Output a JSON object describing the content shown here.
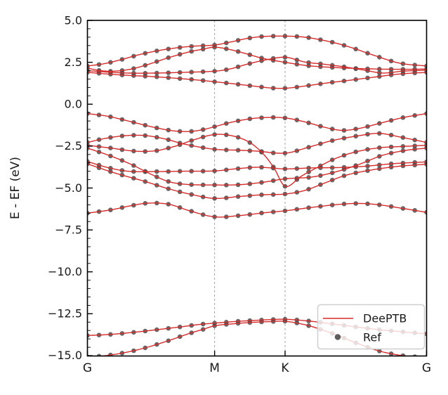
{
  "figure": {
    "background": "#ffffff"
  },
  "chart_data": {
    "type": "line",
    "title": "",
    "ylabel": "E - EF (eV)",
    "ylim": [
      -15,
      5
    ],
    "x_tick_labels": [
      "G",
      "M",
      "K",
      "G"
    ],
    "x_tick_positions": [
      0,
      0.375,
      0.5828,
      1
    ],
    "y_tick_values": [
      5.0,
      2.5,
      0.0,
      -2.5,
      -5.0,
      -7.5,
      -10.0,
      -12.5,
      -15.0
    ],
    "y_tick_labels": [
      "5.0",
      "2.5",
      "0.0",
      "−2.5",
      "−5.0",
      "−7.5",
      "−10.0",
      "−12.5",
      "−15.0"
    ],
    "y_minor_step": 0.5,
    "vlines_x": [
      0.375,
      0.5828
    ],
    "grid": "vertical-dashed-at-high-symmetry-points",
    "legend": {
      "position": "lower-right",
      "entries": [
        {
          "label": "DeePTB",
          "style": "line",
          "color": "#d62b2b"
        },
        {
          "label": "Ref",
          "style": "marker",
          "color": "#4d4d4d"
        }
      ]
    },
    "colors": {
      "line": "#d62b2b",
      "marker": "#4d4d4d",
      "vline": "#999999",
      "axis": "#000000"
    },
    "markers_per_band": 30,
    "bands": [
      {
        "name": "conduction-1",
        "points": [
          [
            0,
            2.28
          ],
          [
            0.05,
            2.42
          ],
          [
            0.1,
            2.66
          ],
          [
            0.15,
            2.94
          ],
          [
            0.21,
            3.2
          ],
          [
            0.27,
            3.38
          ],
          [
            0.32,
            3.47
          ],
          [
            0.375,
            3.53
          ],
          [
            0.42,
            3.7
          ],
          [
            0.47,
            3.92
          ],
          [
            0.52,
            4.04
          ],
          [
            0.583,
            4.06
          ],
          [
            0.64,
            4.0
          ],
          [
            0.71,
            3.75
          ],
          [
            0.77,
            3.43
          ],
          [
            0.84,
            2.95
          ],
          [
            0.92,
            2.45
          ],
          [
            1,
            2.28
          ]
        ]
      },
      {
        "name": "conduction-2",
        "points": [
          [
            0,
            2.15
          ],
          [
            0.04,
            2.0
          ],
          [
            0.08,
            1.97
          ],
          [
            0.13,
            2.1
          ],
          [
            0.18,
            2.38
          ],
          [
            0.24,
            2.78
          ],
          [
            0.3,
            3.12
          ],
          [
            0.34,
            3.28
          ],
          [
            0.375,
            3.4
          ],
          [
            0.42,
            3.26
          ],
          [
            0.47,
            3.0
          ],
          [
            0.52,
            2.72
          ],
          [
            0.583,
            2.5
          ],
          [
            0.64,
            2.32
          ],
          [
            0.7,
            2.22
          ],
          [
            0.77,
            2.15
          ],
          [
            0.85,
            2.1
          ],
          [
            0.93,
            2.08
          ],
          [
            1,
            2.1
          ]
        ]
      },
      {
        "name": "conduction-3",
        "points": [
          [
            0,
            2.0
          ],
          [
            0.07,
            1.9
          ],
          [
            0.14,
            1.85
          ],
          [
            0.21,
            1.86
          ],
          [
            0.28,
            1.9
          ],
          [
            0.375,
            1.97
          ],
          [
            0.42,
            2.1
          ],
          [
            0.47,
            2.38
          ],
          [
            0.52,
            2.62
          ],
          [
            0.583,
            2.8
          ],
          [
            0.64,
            2.52
          ],
          [
            0.7,
            2.38
          ],
          [
            0.76,
            2.22
          ],
          [
            0.82,
            2.02
          ],
          [
            0.87,
            1.86
          ],
          [
            0.93,
            1.97
          ],
          [
            1,
            2.03
          ]
        ]
      },
      {
        "name": "conduction-4",
        "points": [
          [
            0,
            1.9
          ],
          [
            0.06,
            1.8
          ],
          [
            0.12,
            1.72
          ],
          [
            0.19,
            1.65
          ],
          [
            0.26,
            1.55
          ],
          [
            0.32,
            1.45
          ],
          [
            0.375,
            1.34
          ],
          [
            0.43,
            1.22
          ],
          [
            0.49,
            1.08
          ],
          [
            0.54,
            0.97
          ],
          [
            0.583,
            0.95
          ],
          [
            0.64,
            1.08
          ],
          [
            0.7,
            1.25
          ],
          [
            0.77,
            1.42
          ],
          [
            0.84,
            1.6
          ],
          [
            0.92,
            1.8
          ],
          [
            1,
            1.9
          ]
        ]
      },
      {
        "name": "valence-1",
        "points": [
          [
            0,
            -0.56
          ],
          [
            0.06,
            -0.72
          ],
          [
            0.12,
            -1.0
          ],
          [
            0.19,
            -1.35
          ],
          [
            0.25,
            -1.58
          ],
          [
            0.3,
            -1.63
          ],
          [
            0.34,
            -1.52
          ],
          [
            0.375,
            -1.34
          ],
          [
            0.42,
            -1.1
          ],
          [
            0.47,
            -0.9
          ],
          [
            0.52,
            -0.8
          ],
          [
            0.583,
            -0.82
          ],
          [
            0.64,
            -1.05
          ],
          [
            0.7,
            -1.38
          ],
          [
            0.75,
            -1.56
          ],
          [
            0.8,
            -1.45
          ],
          [
            0.86,
            -1.15
          ],
          [
            0.93,
            -0.8
          ],
          [
            1,
            -0.56
          ]
        ]
      },
      {
        "name": "valence-2",
        "points": [
          [
            0,
            -2.28
          ],
          [
            0.05,
            -2.05
          ],
          [
            0.11,
            -1.88
          ],
          [
            0.17,
            -1.87
          ],
          [
            0.23,
            -2.08
          ],
          [
            0.29,
            -2.4
          ],
          [
            0.375,
            -2.69
          ],
          [
            0.44,
            -2.74
          ],
          [
            0.5,
            -2.8
          ],
          [
            0.583,
            -2.92
          ],
          [
            0.65,
            -2.58
          ],
          [
            0.72,
            -2.18
          ],
          [
            0.8,
            -1.88
          ],
          [
            0.86,
            -1.74
          ],
          [
            0.92,
            -1.95
          ],
          [
            1,
            -2.28
          ]
        ]
      },
      {
        "name": "valence-3",
        "points": [
          [
            0,
            -2.45
          ],
          [
            0.07,
            -2.62
          ],
          [
            0.14,
            -2.8
          ],
          [
            0.2,
            -2.78
          ],
          [
            0.26,
            -2.5
          ],
          [
            0.31,
            -2.15
          ],
          [
            0.375,
            -1.81
          ],
          [
            0.43,
            -1.9
          ],
          [
            0.48,
            -2.3
          ],
          [
            0.52,
            -3.0
          ],
          [
            0.55,
            -3.8
          ],
          [
            0.583,
            -4.9
          ],
          [
            0.63,
            -4.3
          ],
          [
            0.68,
            -3.75
          ],
          [
            0.73,
            -3.25
          ],
          [
            0.79,
            -2.85
          ],
          [
            0.86,
            -2.6
          ],
          [
            0.93,
            -2.52
          ],
          [
            1,
            -2.45
          ]
        ]
      },
      {
        "name": "valence-4",
        "points": [
          [
            0,
            -2.62
          ],
          [
            0.07,
            -3.1
          ],
          [
            0.13,
            -3.6
          ],
          [
            0.19,
            -4.2
          ],
          [
            0.24,
            -4.62
          ],
          [
            0.29,
            -4.78
          ],
          [
            0.375,
            -4.82
          ],
          [
            0.45,
            -4.8
          ],
          [
            0.52,
            -4.65
          ],
          [
            0.583,
            -4.45
          ],
          [
            0.66,
            -4.35
          ],
          [
            0.73,
            -4.05
          ],
          [
            0.8,
            -3.6
          ],
          [
            0.87,
            -3.05
          ],
          [
            0.94,
            -2.75
          ],
          [
            1,
            -2.62
          ]
        ]
      },
      {
        "name": "valence-5",
        "points": [
          [
            0,
            -3.42
          ],
          [
            0.06,
            -3.78
          ],
          [
            0.12,
            -4.0
          ],
          [
            0.2,
            -4.02
          ],
          [
            0.28,
            -4.0
          ],
          [
            0.375,
            -3.98
          ],
          [
            0.44,
            -3.85
          ],
          [
            0.5,
            -3.76
          ],
          [
            0.54,
            -3.8
          ],
          [
            0.583,
            -3.86
          ],
          [
            0.66,
            -3.8
          ],
          [
            0.74,
            -3.78
          ],
          [
            0.82,
            -3.7
          ],
          [
            0.9,
            -3.55
          ],
          [
            1,
            -3.44
          ]
        ]
      },
      {
        "name": "valence-6",
        "points": [
          [
            0,
            -3.56
          ],
          [
            0.08,
            -4.1
          ],
          [
            0.16,
            -4.55
          ],
          [
            0.24,
            -5.05
          ],
          [
            0.31,
            -5.4
          ],
          [
            0.375,
            -5.62
          ],
          [
            0.45,
            -5.5
          ],
          [
            0.52,
            -5.4
          ],
          [
            0.583,
            -5.36
          ],
          [
            0.64,
            -5.15
          ],
          [
            0.7,
            -4.7
          ],
          [
            0.76,
            -4.25
          ],
          [
            0.83,
            -3.95
          ],
          [
            0.91,
            -3.72
          ],
          [
            1,
            -3.58
          ]
        ]
      },
      {
        "name": "valence-7",
        "points": [
          [
            0,
            -6.5
          ],
          [
            0.07,
            -6.3
          ],
          [
            0.13,
            -6.05
          ],
          [
            0.18,
            -5.9
          ],
          [
            0.24,
            -5.97
          ],
          [
            0.3,
            -6.35
          ],
          [
            0.375,
            -6.72
          ],
          [
            0.45,
            -6.64
          ],
          [
            0.52,
            -6.48
          ],
          [
            0.583,
            -6.36
          ],
          [
            0.66,
            -6.16
          ],
          [
            0.74,
            -5.98
          ],
          [
            0.8,
            -5.92
          ],
          [
            0.86,
            -6.0
          ],
          [
            0.93,
            -6.22
          ],
          [
            1,
            -6.45
          ]
        ]
      },
      {
        "name": "semicore-1",
        "points": [
          [
            0,
            -13.8
          ],
          [
            0.07,
            -13.73
          ],
          [
            0.14,
            -13.6
          ],
          [
            0.21,
            -13.44
          ],
          [
            0.28,
            -13.27
          ],
          [
            0.33,
            -13.14
          ],
          [
            0.375,
            -13.06
          ],
          [
            0.43,
            -12.97
          ],
          [
            0.49,
            -12.9
          ],
          [
            0.54,
            -12.85
          ],
          [
            0.583,
            -12.83
          ],
          [
            0.65,
            -12.93
          ],
          [
            0.72,
            -13.1
          ],
          [
            0.79,
            -13.28
          ],
          [
            0.86,
            -13.45
          ],
          [
            0.93,
            -13.58
          ],
          [
            1,
            -13.7
          ]
        ]
      },
      {
        "name": "semicore-2",
        "points": [
          [
            0,
            -15.08
          ],
          [
            0.06,
            -14.98
          ],
          [
            0.12,
            -14.78
          ],
          [
            0.18,
            -14.48
          ],
          [
            0.24,
            -14.1
          ],
          [
            0.3,
            -13.68
          ],
          [
            0.34,
            -13.44
          ],
          [
            0.375,
            -13.22
          ],
          [
            0.43,
            -13.1
          ],
          [
            0.49,
            -13.01
          ],
          [
            0.54,
            -12.97
          ],
          [
            0.583,
            -12.95
          ],
          [
            0.65,
            -13.2
          ],
          [
            0.72,
            -13.66
          ],
          [
            0.79,
            -14.22
          ],
          [
            0.86,
            -14.72
          ],
          [
            0.93,
            -15.0
          ],
          [
            1,
            -15.1
          ]
        ]
      }
    ]
  }
}
